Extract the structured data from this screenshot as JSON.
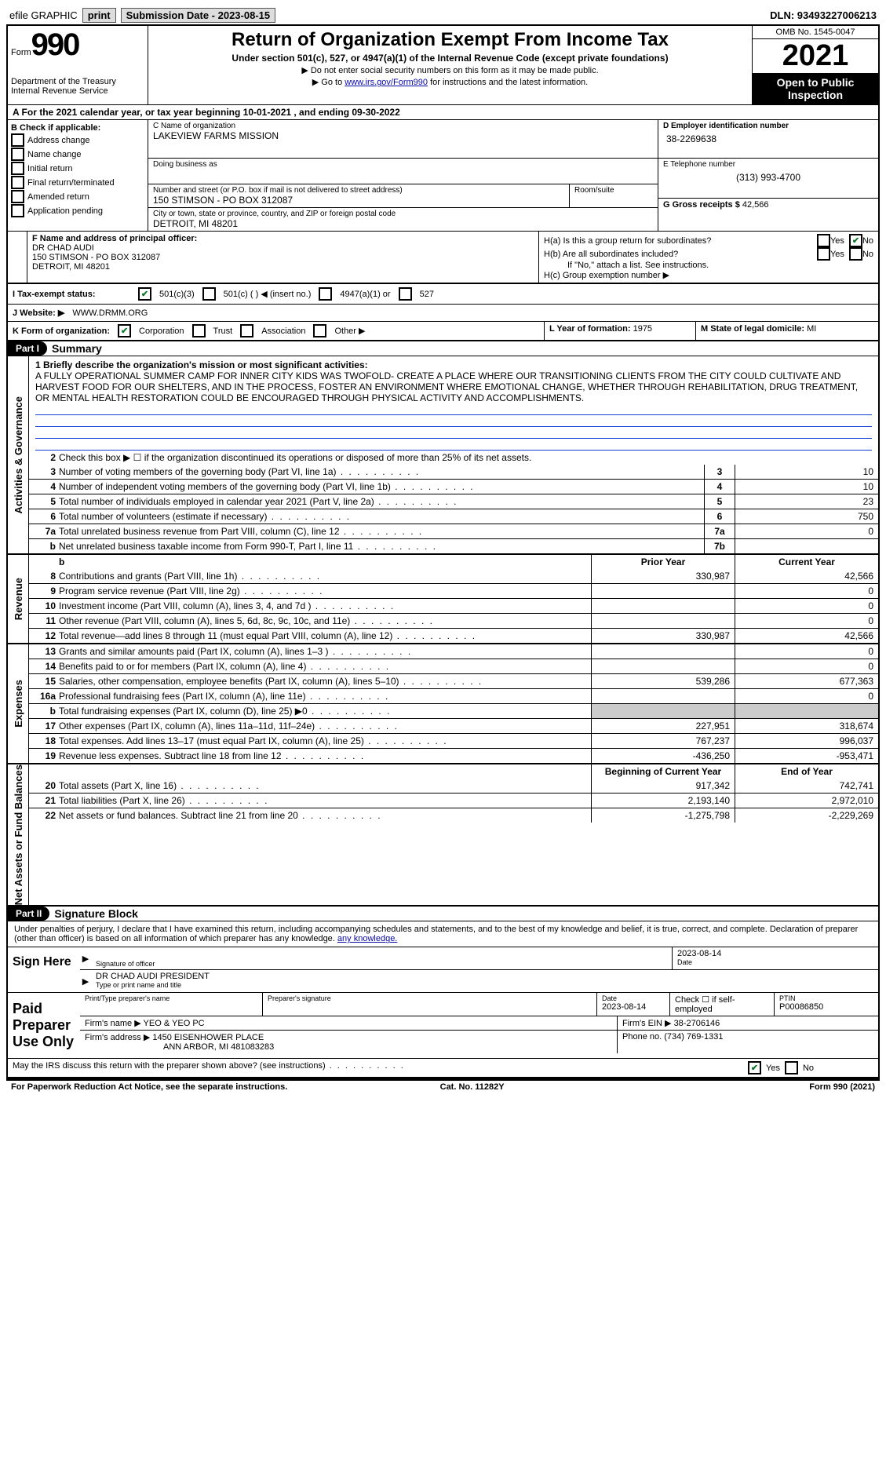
{
  "topbar": {
    "efile": "efile GRAPHIC",
    "print": "print",
    "subdate_label": "Submission Date - 2023-08-15",
    "dln": "DLN: 93493227006213"
  },
  "header": {
    "form_word": "Form",
    "form_num": "990",
    "dept": "Department of the Treasury\nInternal Revenue Service",
    "title": "Return of Organization Exempt From Income Tax",
    "subtitle": "Under section 501(c), 527, or 4947(a)(1) of the Internal Revenue Code (except private foundations)",
    "arrow1": "▶ Do not enter social security numbers on this form as it may be made public.",
    "arrow2_pre": "▶ Go to ",
    "arrow2_link": "www.irs.gov/Form990",
    "arrow2_post": " for instructions and the latest information.",
    "omb": "OMB No. 1545-0047",
    "year": "2021",
    "openpub": "Open to Public Inspection"
  },
  "rowA": "A For the 2021 calendar year, or tax year beginning 10-01-2021     , and ending 09-30-2022",
  "boxB": {
    "label": "B Check if applicable:",
    "opts": [
      "Address change",
      "Name change",
      "Initial return",
      "Final return/terminated",
      "Amended return",
      "Application pending"
    ]
  },
  "boxC": {
    "label_name": "C Name of organization",
    "org_name": "LAKEVIEW FARMS MISSION",
    "dba_label": "Doing business as",
    "addr_label": "Number and street (or P.O. box if mail is not delivered to street address)",
    "room_label": "Room/suite",
    "addr": "150 STIMSON - PO BOX 312087",
    "city_label": "City or town, state or province, country, and ZIP or foreign postal code",
    "city": "DETROIT, MI  48201"
  },
  "boxD": {
    "label": "D Employer identification number",
    "val": "38-2269638"
  },
  "boxE": {
    "label": "E Telephone number",
    "val": "(313) 993-4700"
  },
  "boxG": {
    "label": "G Gross receipts $",
    "val": "42,566"
  },
  "boxF": {
    "label": "F  Name and address of principal officer:",
    "name": "DR CHAD AUDI",
    "addr1": "150 STIMSON - PO BOX 312087",
    "addr2": "DETROIT, MI  48201"
  },
  "boxH": {
    "ha": "H(a)  Is this a group return for subordinates?",
    "hb": "H(b)  Are all subordinates included?",
    "hb_note": "If \"No,\" attach a list. See instructions.",
    "hc": "H(c)  Group exemption number ▶",
    "yes": "Yes",
    "no": "No"
  },
  "rowI": {
    "label": "I   Tax-exempt status:",
    "o1": "501(c)(3)",
    "o2": "501(c) (  ) ◀ (insert no.)",
    "o3": "4947(a)(1) or",
    "o4": "527"
  },
  "rowJ": {
    "label": "J   Website: ▶",
    "val": "WWW.DRMM.ORG"
  },
  "rowK": {
    "label": "K Form of organization:",
    "opts": [
      "Corporation",
      "Trust",
      "Association",
      "Other ▶"
    ]
  },
  "rowL": {
    "label": "L Year of formation:",
    "val": "1975"
  },
  "rowM": {
    "label": "M State of legal domicile:",
    "val": "MI"
  },
  "part1": {
    "tag": "Part I",
    "title": "Summary"
  },
  "summary": {
    "q1_label": "1  Briefly describe the organization's mission or most significant activities:",
    "q1_text": "A FULLY OPERATIONAL SUMMER CAMP FOR INNER CITY KIDS WAS TWOFOLD- CREATE A PLACE WHERE OUR TRANSITIONING CLIENTS FROM THE CITY COULD CULTIVATE AND HARVEST FOOD FOR OUR SHELTERS, AND IN THE PROCESS, FOSTER AN ENVIRONMENT WHERE EMOTIONAL CHANGE, WHETHER THROUGH REHABILITATION, DRUG TREATMENT, OR MENTAL HEALTH RESTORATION COULD BE ENCOURAGED THROUGH PHYSICAL ACTIVITY AND ACCOMPLISHMENTS.",
    "q2": "Check this box ▶ ☐  if the organization discontinued its operations or disposed of more than 25% of its net assets."
  },
  "sideLabels": {
    "gov": "Activities & Governance",
    "rev": "Revenue",
    "exp": "Expenses",
    "net": "Net Assets or Fund Balances"
  },
  "govlines": [
    {
      "n": "3",
      "t": "Number of voting members of the governing body (Part VI, line 1a)",
      "nc": "3",
      "v": "10"
    },
    {
      "n": "4",
      "t": "Number of independent voting members of the governing body (Part VI, line 1b)",
      "nc": "4",
      "v": "10"
    },
    {
      "n": "5",
      "t": "Total number of individuals employed in calendar year 2021 (Part V, line 2a)",
      "nc": "5",
      "v": "23"
    },
    {
      "n": "6",
      "t": "Total number of volunteers (estimate if necessary)",
      "nc": "6",
      "v": "750"
    },
    {
      "n": "7a",
      "t": "Total unrelated business revenue from Part VIII, column (C), line 12",
      "nc": "7a",
      "v": "0"
    },
    {
      "n": "b",
      "t": "Net unrelated business taxable income from Form 990-T, Part I, line 11",
      "nc": "7b",
      "v": ""
    }
  ],
  "colheads": {
    "prior": "Prior Year",
    "current": "Current Year",
    "begin": "Beginning of Current Year",
    "end": "End of Year"
  },
  "revlines": [
    {
      "n": "8",
      "t": "Contributions and grants (Part VIII, line 1h)",
      "p": "330,987",
      "c": "42,566"
    },
    {
      "n": "9",
      "t": "Program service revenue (Part VIII, line 2g)",
      "p": "",
      "c": "0"
    },
    {
      "n": "10",
      "t": "Investment income (Part VIII, column (A), lines 3, 4, and 7d )",
      "p": "",
      "c": "0"
    },
    {
      "n": "11",
      "t": "Other revenue (Part VIII, column (A), lines 5, 6d, 8c, 9c, 10c, and 11e)",
      "p": "",
      "c": "0"
    },
    {
      "n": "12",
      "t": "Total revenue—add lines 8 through 11 (must equal Part VIII, column (A), line 12)",
      "p": "330,987",
      "c": "42,566"
    }
  ],
  "explines": [
    {
      "n": "13",
      "t": "Grants and similar amounts paid (Part IX, column (A), lines 1–3 )",
      "p": "",
      "c": "0"
    },
    {
      "n": "14",
      "t": "Benefits paid to or for members (Part IX, column (A), line 4)",
      "p": "",
      "c": "0"
    },
    {
      "n": "15",
      "t": "Salaries, other compensation, employee benefits (Part IX, column (A), lines 5–10)",
      "p": "539,286",
      "c": "677,363"
    },
    {
      "n": "16a",
      "t": "Professional fundraising fees (Part IX, column (A), line 11e)",
      "p": "",
      "c": "0"
    },
    {
      "n": "b",
      "t": "Total fundraising expenses (Part IX, column (D), line 25) ▶0",
      "p": "GRAY",
      "c": "GRAY"
    },
    {
      "n": "17",
      "t": "Other expenses (Part IX, column (A), lines 11a–11d, 11f–24e)",
      "p": "227,951",
      "c": "318,674"
    },
    {
      "n": "18",
      "t": "Total expenses. Add lines 13–17 (must equal Part IX, column (A), line 25)",
      "p": "767,237",
      "c": "996,037"
    },
    {
      "n": "19",
      "t": "Revenue less expenses. Subtract line 18 from line 12",
      "p": "-436,250",
      "c": "-953,471"
    }
  ],
  "netlines": [
    {
      "n": "20",
      "t": "Total assets (Part X, line 16)",
      "p": "917,342",
      "c": "742,741"
    },
    {
      "n": "21",
      "t": "Total liabilities (Part X, line 26)",
      "p": "2,193,140",
      "c": "2,972,010"
    },
    {
      "n": "22",
      "t": "Net assets or fund balances. Subtract line 21 from line 20",
      "p": "-1,275,798",
      "c": "-2,229,269"
    }
  ],
  "part2": {
    "tag": "Part II",
    "title": "Signature Block"
  },
  "sig": {
    "intro": "Under penalties of perjury, I declare that I have examined this return, including accompanying schedules and statements, and to the best of my knowledge and belief, it is true, correct, and complete. Declaration of preparer (other than officer) is based on all information of which preparer has any knowledge.",
    "sign_here": "Sign Here",
    "sig_officer": "Signature of officer",
    "date": "Date",
    "date_val": "2023-08-14",
    "name_title": "DR CHAD AUDI  PRESIDENT",
    "name_title_label": "Type or print name and title",
    "paid": "Paid Preparer Use Only",
    "prep_name_label": "Print/Type preparer's name",
    "prep_sig_label": "Preparer's signature",
    "prep_date": "2023-08-14",
    "check_self": "Check ☐ if self-employed",
    "ptin_label": "PTIN",
    "ptin": "P00086850",
    "firm_name_label": "Firm's name    ▶",
    "firm_name": "YEO & YEO PC",
    "firm_ein_label": "Firm's EIN ▶",
    "firm_ein": "38-2706146",
    "firm_addr_label": "Firm's address ▶",
    "firm_addr1": "1450 EISENHOWER PLACE",
    "firm_addr2": "ANN ARBOR, MI  481083283",
    "phone_label": "Phone no.",
    "phone": "(734) 769-1331",
    "discuss": "May the IRS discuss this return with the preparer shown above? (see instructions)"
  },
  "footer": {
    "left": "For Paperwork Reduction Act Notice, see the separate instructions.",
    "mid": "Cat. No. 11282Y",
    "right": "Form 990 (2021)"
  }
}
